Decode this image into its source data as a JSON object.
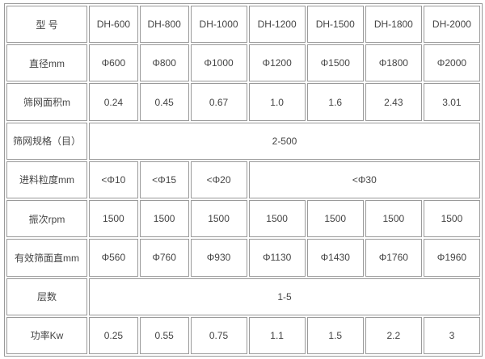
{
  "rows": [
    {
      "label": "型 号",
      "cells": [
        "DH-600",
        "DH-800",
        "DH-1000",
        "DH-1200",
        "DH-1500",
        "DH-1800",
        "DH-2000"
      ]
    },
    {
      "label": "直径mm",
      "cells": [
        "Φ600",
        "Φ800",
        "Φ1000",
        "Φ1200",
        "Φ1500",
        "Φ1800",
        "Φ2000"
      ]
    },
    {
      "label": "筛网面积m",
      "cells": [
        "0.24",
        "0.45",
        "0.67",
        "1.0",
        "1.6",
        "2.43",
        "3.01"
      ]
    },
    {
      "label": "筛网规格（目）",
      "merged": "2-500"
    },
    {
      "label": "进料粒度mm",
      "cells": [
        "<Φ10",
        "<Φ15",
        "<Φ20"
      ],
      "merged": "<Φ30"
    },
    {
      "label": "振次rpm",
      "cells": [
        "1500",
        "1500",
        "1500",
        "1500",
        "1500",
        "1500",
        "1500"
      ]
    },
    {
      "label": "有效筛面直mm",
      "cells": [
        "Φ560",
        "Φ760",
        "Φ930",
        "Φ1130",
        "Φ1430",
        "Φ1760",
        "Φ1960"
      ]
    },
    {
      "label": "层数",
      "merged": "1-5"
    },
    {
      "label": "功率Kw",
      "cells": [
        "0.25",
        "0.55",
        "0.75",
        "1.1",
        "1.5",
        "2.2",
        "3"
      ]
    }
  ]
}
